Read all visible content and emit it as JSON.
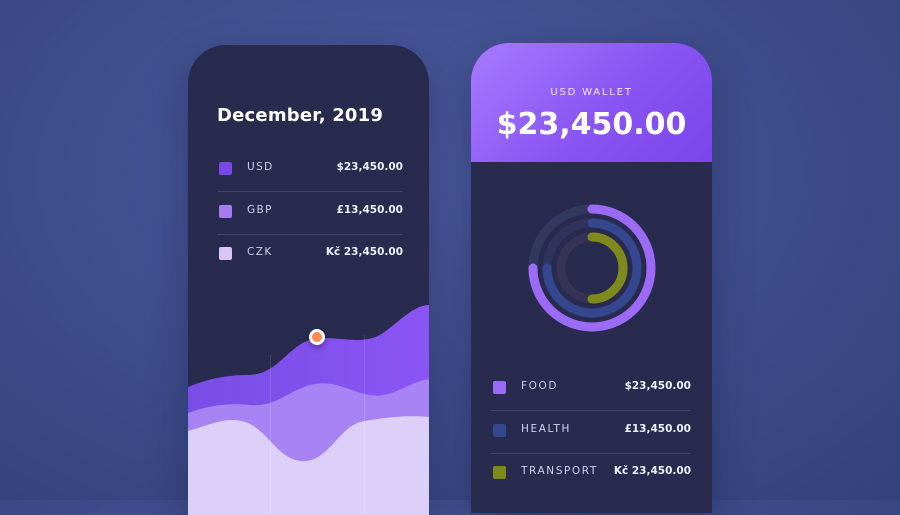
{
  "left_card": {
    "title": "December, 2019",
    "currencies": [
      {
        "code": "USD",
        "amount": "$23,450.00",
        "color": "#7b48e8"
      },
      {
        "code": "GBP",
        "amount": "£13,450.00",
        "color": "#a47cef"
      },
      {
        "code": "CZK",
        "amount": "Kč 23,450.00",
        "color": "#d6c5f6"
      }
    ]
  },
  "right_card": {
    "wallet_label": "USD WALLET",
    "balance": "$23,450.00",
    "categories": [
      {
        "name": "FOOD",
        "amount": "$23,450.00",
        "color": "#9b6bf5"
      },
      {
        "name": "HEALTH",
        "amount": "£13,450.00",
        "color": "#34478f"
      },
      {
        "name": "TRANSPORT",
        "amount": "Kč 23,450.00",
        "color": "#7e8a1c"
      }
    ]
  }
}
